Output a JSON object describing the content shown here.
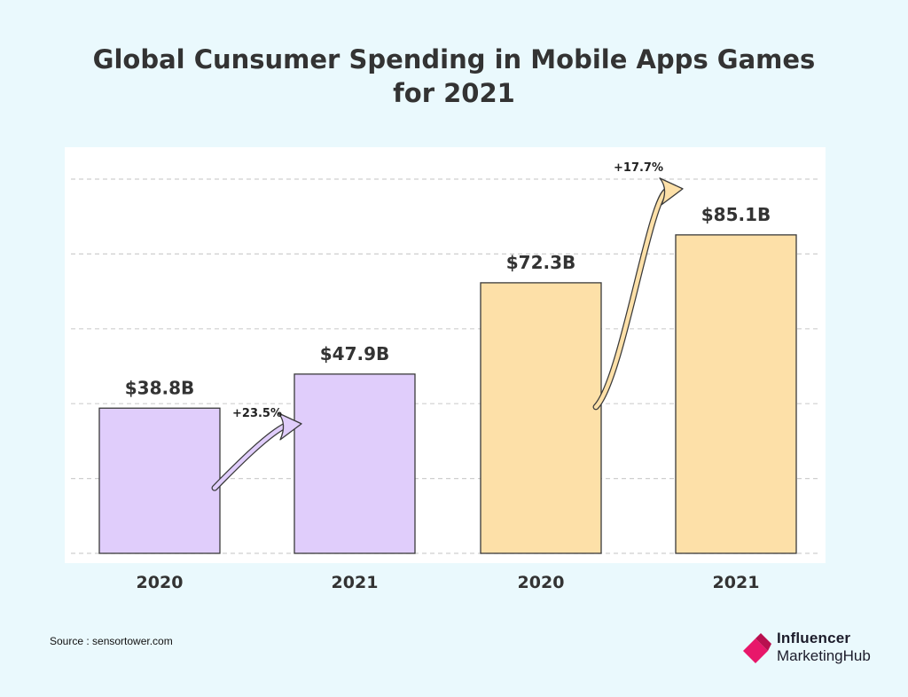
{
  "title_lines": [
    "Global Cunsumer Spending in Mobile Apps Games",
    "for 2021"
  ],
  "source": "Source : sensortower.com",
  "logo": {
    "line1": "Influencer",
    "line2": "MarketingHub"
  },
  "colors": {
    "apps_fill": "#e0cdfb",
    "games_fill": "#fde0a8",
    "bar_stroke": "#3a3a3a",
    "grid": "#cfcfcf",
    "text": "#333333",
    "logo_accent": "#e8176a"
  },
  "chart_data": {
    "type": "bar",
    "title": "Global Cunsumer Spending in Mobile Apps Games for 2021",
    "categories": [
      "2020",
      "2021",
      "2020",
      "2021"
    ],
    "values": [
      38.8,
      47.9,
      72.3,
      85.1
    ],
    "value_labels": [
      "$38.8B",
      "$47.9B",
      "$72.3B",
      "$85.1B"
    ],
    "groups": [
      {
        "bars": [
          0,
          1
        ],
        "change_label": "+23.5%",
        "color": "apps"
      },
      {
        "bars": [
          2,
          3
        ],
        "change_label": "+17.7%",
        "color": "games"
      }
    ],
    "xlabel": "",
    "ylabel": "",
    "ylim": [
      0,
      100
    ],
    "grid": true,
    "legend": "none"
  }
}
